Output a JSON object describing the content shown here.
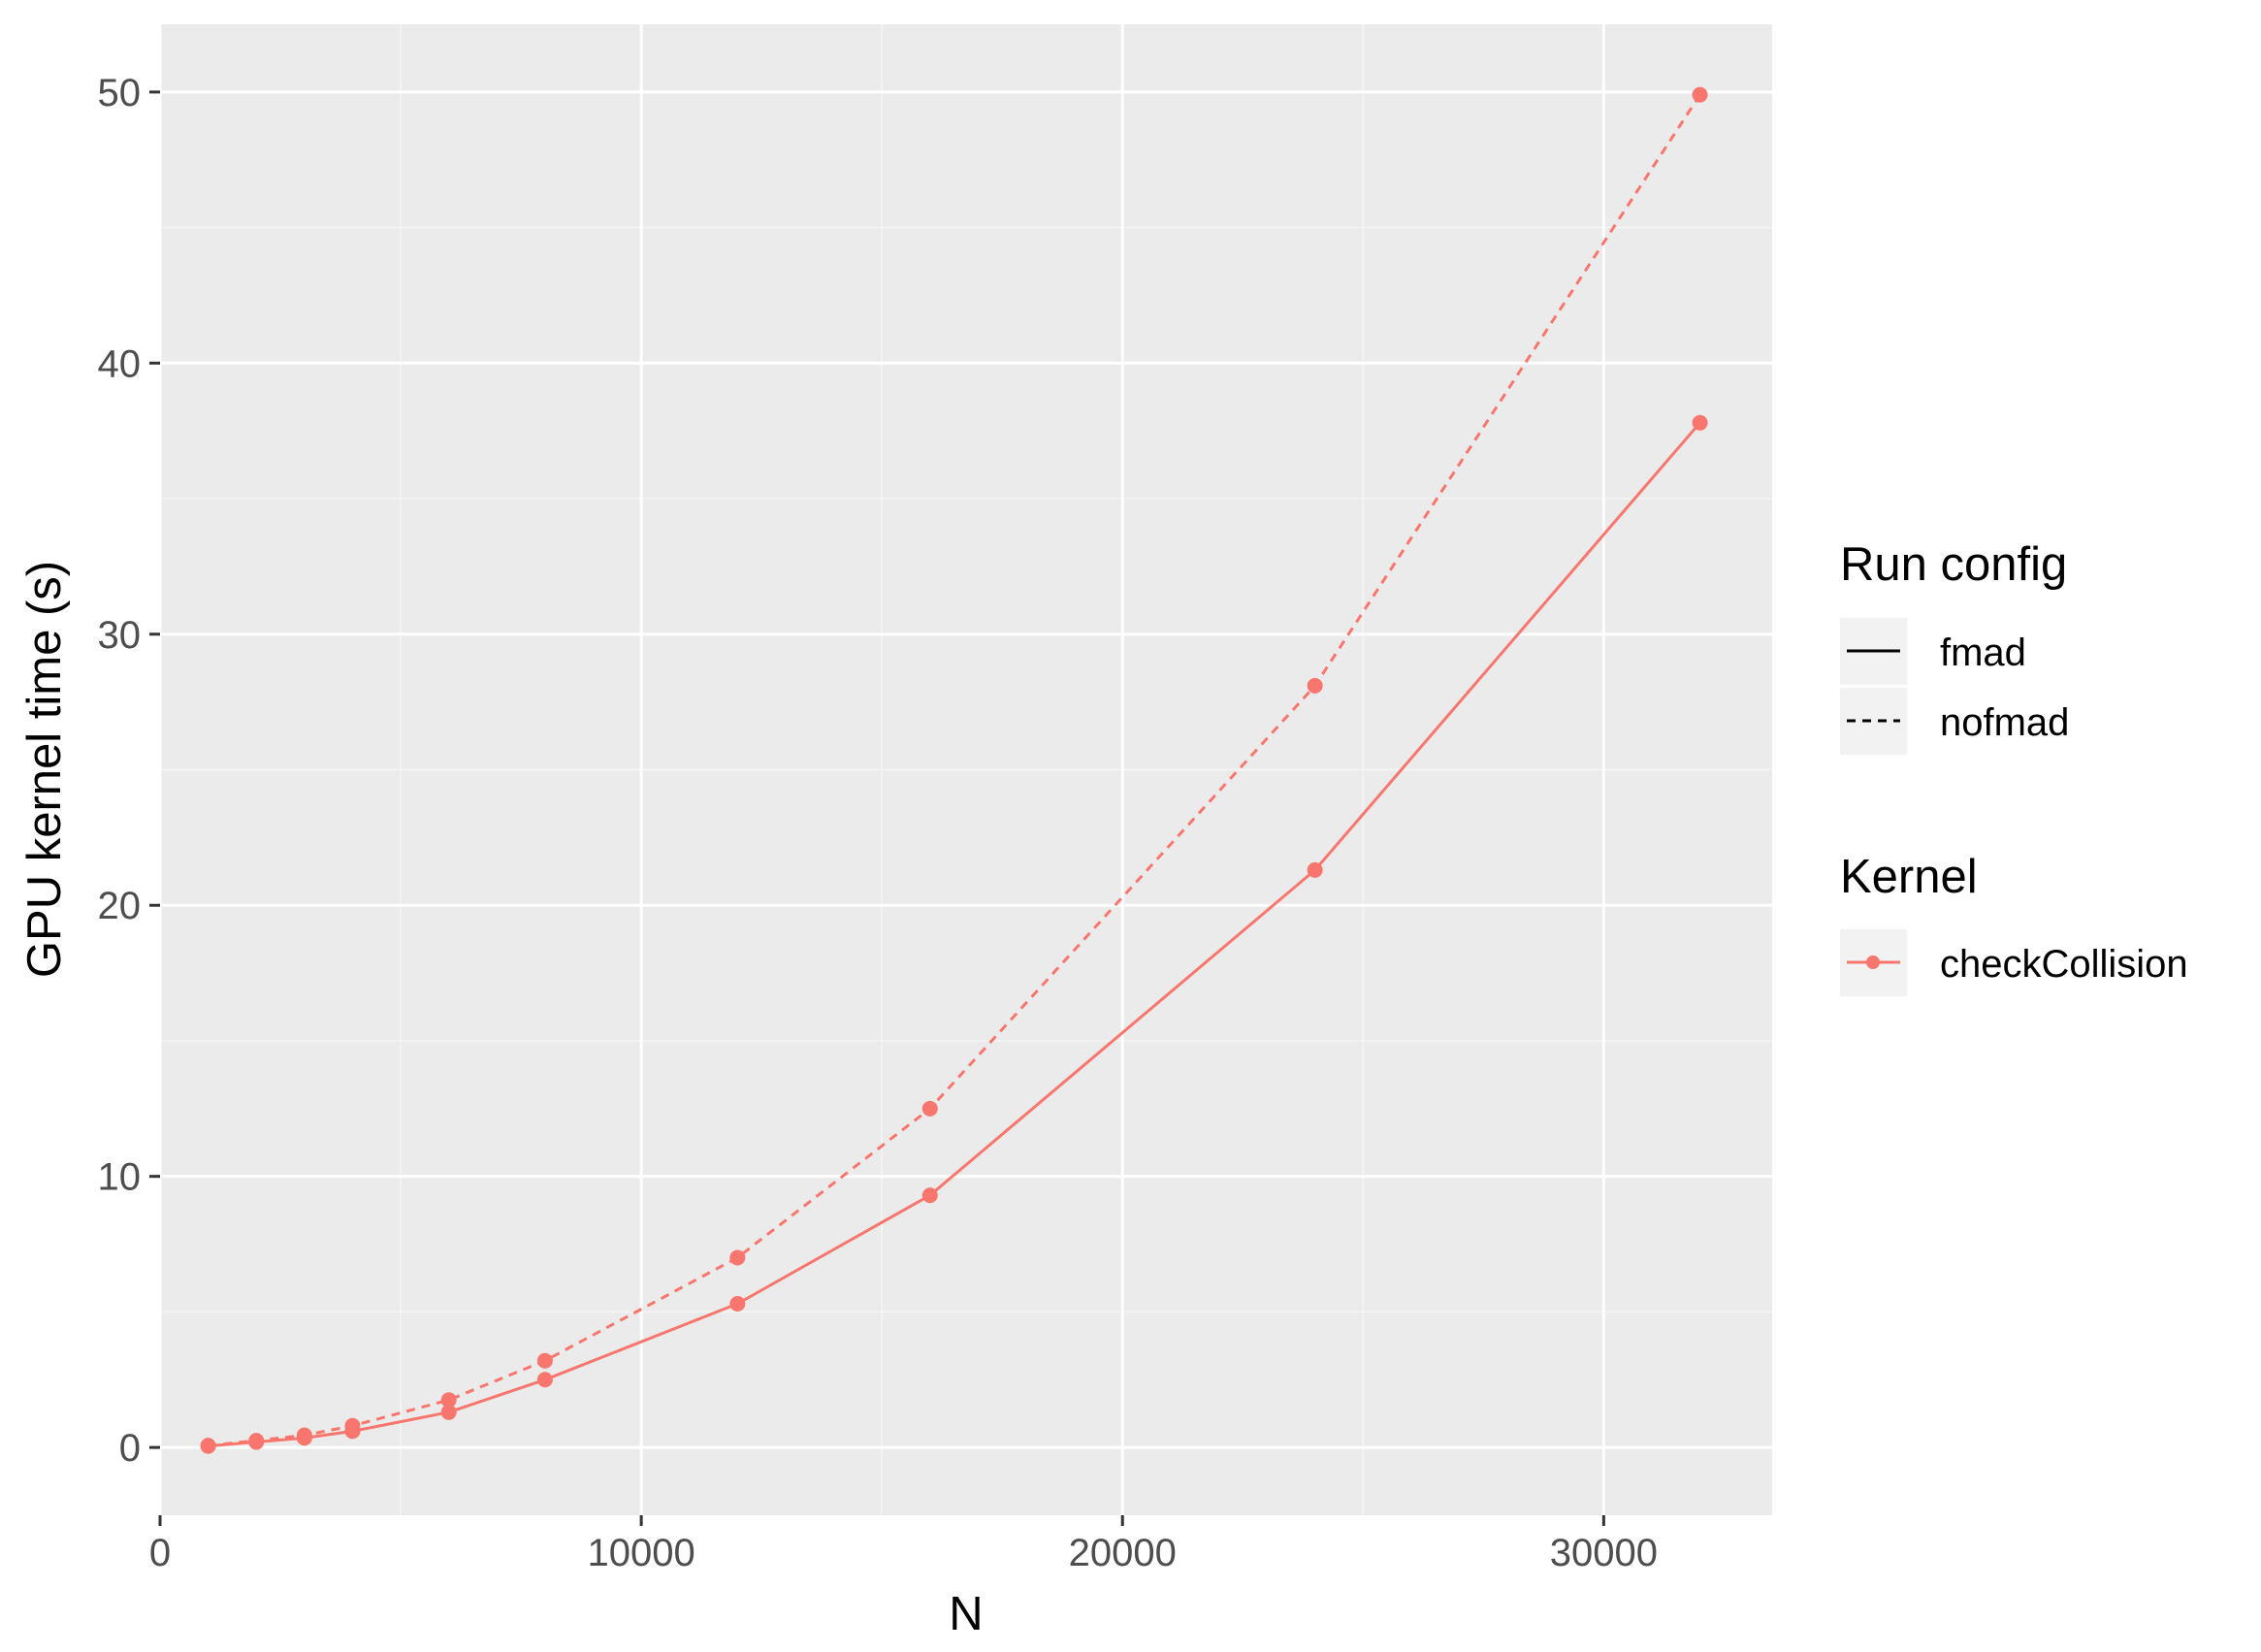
{
  "chart_data": {
    "type": "line",
    "xlabel": "N",
    "ylabel": "GPU kernel time (s)",
    "xlim": [
      0,
      33500
    ],
    "ylim": [
      -2.5,
      52.5
    ],
    "x_ticks": [
      0,
      10000,
      20000,
      30000
    ],
    "x_tick_labels": [
      "0",
      "10000",
      "20000",
      "30000"
    ],
    "y_ticks": [
      0,
      10,
      20,
      30,
      40,
      50
    ],
    "y_tick_labels": [
      "0",
      "10",
      "20",
      "30",
      "40",
      "50"
    ],
    "grid": true,
    "colors": {
      "series": "#f8766d",
      "panel_background": "#ebebeb",
      "grid_major": "#ffffff",
      "grid_minor": "#f5f5f5",
      "tick": "#333333",
      "legend_key_background": "#f2f2f2"
    },
    "series": [
      {
        "name": "fmad",
        "kernel": "checkCollision",
        "linetype": "solid",
        "x": [
          1000,
          2000,
          3000,
          4000,
          6000,
          8000,
          12000,
          16000,
          24000,
          32000
        ],
        "y": [
          0.05,
          0.2,
          0.35,
          0.6,
          1.3,
          2.5,
          5.3,
          9.3,
          21.3,
          37.8
        ]
      },
      {
        "name": "nofmad",
        "kernel": "checkCollision",
        "linetype": "dashed",
        "x": [
          1000,
          2000,
          3000,
          4000,
          6000,
          8000,
          12000,
          16000,
          24000,
          32000
        ],
        "y": [
          0.07,
          0.25,
          0.45,
          0.8,
          1.75,
          3.2,
          7.0,
          12.5,
          28.1,
          49.9
        ]
      }
    ],
    "legend": {
      "position": "right",
      "groups": [
        {
          "title": "Run config",
          "entries": [
            {
              "label": "fmad",
              "linetype": "solid"
            },
            {
              "label": "nofmad",
              "linetype": "dashed"
            }
          ]
        },
        {
          "title": "Kernel",
          "entries": [
            {
              "label": "checkCollision",
              "marker": "point"
            }
          ]
        }
      ]
    }
  }
}
